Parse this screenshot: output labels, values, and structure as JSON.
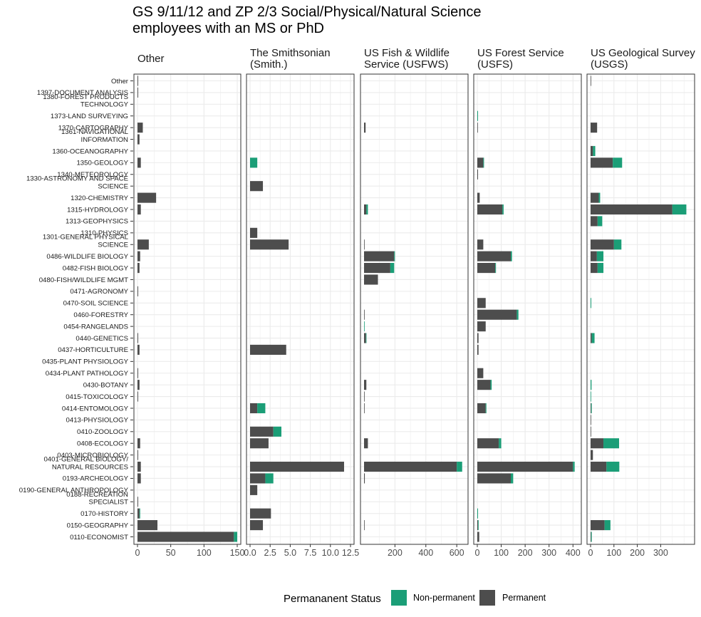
{
  "chart_data": {
    "type": "bar",
    "orientation": "horizontal",
    "stacked": true,
    "title": "GS 9/11/12 and ZP 2/3 Social/Physical/Natural Science employees with an MS or PhD",
    "title_lines": [
      "GS 9/11/12 and ZP 2/3 Social/Physical/Natural Science",
      "employees with an MS or PhD"
    ],
    "categories": [
      "Other",
      "1397-DOCUMENT ANALYSIS",
      "1380-FOREST PRODUCTS TECHNOLOGY",
      "1373-LAND SURVEYING",
      "1370-CARTOGRAPHY",
      "1361-NAVIGATIONAL INFORMATION",
      "1360-OCEANOGRAPHY",
      "1350-GEOLOGY",
      "1340-METEOROLOGY",
      "1330-ASTRONOMY AND SPACE SCIENCE",
      "1320-CHEMISTRY",
      "1315-HYDROLOGY",
      "1313-GEOPHYSICS",
      "1310-PHYSICS",
      "1301-GENERAL PHYSICAL SCIENCE",
      "0486-WILDLIFE BIOLOGY",
      "0482-FISH BIOLOGY",
      "0480-FISH/WILDLIFE MGMT",
      "0471-AGRONOMY",
      "0470-SOIL SCIENCE",
      "0460-FORESTRY",
      "0454-RANGELANDS",
      "0440-GENETICS",
      "0437-HORTICULTURE",
      "0435-PLANT PHYSIOLOGY",
      "0434-PLANT PATHOLOGY",
      "0430-BOTANY",
      "0415-TOXICOLOGY",
      "0414-ENTOMOLOGY",
      "0413-PHYSIOLOGY",
      "0410-ZOOLOGY",
      "0408-ECOLOGY",
      "0403-MICROBIOLOGY",
      "0401-GENERAL BIOLOGY/ NATURAL RESOURCES",
      "0193-ARCHEOLOGY",
      "0190-GENERAL ANTHROPOLOGY",
      "0188-RECREATION SPECIALIST",
      "0170-HISTORY",
      "0150-GEOGRAPHY",
      "0110-ECONOMIST"
    ],
    "category_lines": [
      [
        "Other"
      ],
      [
        "1397-DOCUMENT ANALYSIS"
      ],
      [
        "1380-FOREST PRODUCTS",
        "TECHNOLOGY"
      ],
      [
        "1373-LAND SURVEYING"
      ],
      [
        "1370-CARTOGRAPHY"
      ],
      [
        "1361-NAVIGATIONAL",
        "INFORMATION"
      ],
      [
        "1360-OCEANOGRAPHY"
      ],
      [
        "1350-GEOLOGY"
      ],
      [
        "1340-METEOROLOGY"
      ],
      [
        "1330-ASTRONOMY AND SPACE",
        "SCIENCE"
      ],
      [
        "1320-CHEMISTRY"
      ],
      [
        "1315-HYDROLOGY"
      ],
      [
        "1313-GEOPHYSICS"
      ],
      [
        "1310-PHYSICS"
      ],
      [
        "1301-GENERAL PHYSICAL",
        "SCIENCE"
      ],
      [
        "0486-WILDLIFE BIOLOGY"
      ],
      [
        "0482-FISH BIOLOGY"
      ],
      [
        "0480-FISH/WILDLIFE MGMT"
      ],
      [
        "0471-AGRONOMY"
      ],
      [
        "0470-SOIL SCIENCE"
      ],
      [
        "0460-FORESTRY"
      ],
      [
        "0454-RANGELANDS"
      ],
      [
        "0440-GENETICS"
      ],
      [
        "0437-HORTICULTURE"
      ],
      [
        "0435-PLANT PHYSIOLOGY"
      ],
      [
        "0434-PLANT PATHOLOGY"
      ],
      [
        "0430-BOTANY"
      ],
      [
        "0415-TOXICOLOGY"
      ],
      [
        "0414-ENTOMOLOGY"
      ],
      [
        "0413-PHYSIOLOGY"
      ],
      [
        "0410-ZOOLOGY"
      ],
      [
        "0408-ECOLOGY"
      ],
      [
        "0403-MICROBIOLOGY"
      ],
      [
        "0401-GENERAL BIOLOGY/",
        "NATURAL RESOURCES"
      ],
      [
        "0193-ARCHEOLOGY"
      ],
      [
        "0190-GENERAL ANTHROPOLOGY"
      ],
      [
        "0188-RECREATION",
        "SPECIALIST"
      ],
      [
        "0170-HISTORY"
      ],
      [
        "0150-GEOGRAPHY"
      ],
      [
        "0110-ECONOMIST"
      ]
    ],
    "legend": {
      "title": "Permananent Status",
      "position": "bottom",
      "entries": [
        {
          "name": "Non-permanent",
          "color": "#1b9e77"
        },
        {
          "name": "Permanent",
          "color": "#4d4d4d"
        }
      ]
    },
    "colors": {
      "permanent": "#4d4d4d",
      "non_permanent": "#1b9e77",
      "panel_border": "#333333",
      "grid": "#ebebeb"
    },
    "grid": true,
    "panels": [
      {
        "strip_lines": [
          "Other"
        ],
        "xlim": [
          0,
          150
        ],
        "ticks": [
          0,
          50,
          100,
          150
        ],
        "tick_labels": [
          "0",
          "50",
          "100",
          "150"
        ],
        "permanent": [
          1,
          1,
          0,
          0,
          8,
          3,
          0,
          5,
          0,
          0,
          28,
          5,
          0,
          0,
          17,
          4,
          3,
          0,
          1,
          0,
          0,
          0,
          1,
          3,
          0,
          1,
          3,
          1,
          0,
          0,
          0,
          4,
          1,
          5,
          5,
          0,
          1,
          3,
          30,
          145
        ],
        "non_permanent": [
          0,
          0,
          0,
          0,
          0,
          0,
          0,
          0,
          0,
          0,
          0,
          0,
          0,
          0,
          0,
          0,
          0,
          0,
          0,
          0,
          0,
          0,
          0,
          0,
          0,
          0,
          0,
          0,
          0,
          0,
          0,
          0,
          0,
          0,
          0,
          0,
          0,
          1,
          0,
          5
        ]
      },
      {
        "strip_lines": [
          "The Smithsonian",
          "(Smith.)"
        ],
        "xlim": [
          0,
          12.5
        ],
        "ticks": [
          0,
          2.5,
          5,
          7.5,
          10,
          12.5
        ],
        "tick_labels": [
          "0.0",
          "2.5",
          "5.0",
          "7.5",
          "10.0",
          "12.5"
        ],
        "permanent": [
          0,
          0,
          0,
          0,
          0,
          0,
          0,
          0,
          0,
          1.6,
          0,
          0,
          0,
          0.9,
          4.8,
          0,
          0,
          0,
          0,
          0,
          0,
          0,
          0,
          4.5,
          0,
          0,
          0,
          0,
          0.9,
          0,
          2.9,
          2.3,
          0,
          11.7,
          1.9,
          0.9,
          0,
          2.6,
          1.6,
          0
        ],
        "non_permanent": [
          0,
          0,
          0,
          0,
          0,
          0,
          0,
          0.9,
          0,
          0,
          0,
          0,
          0,
          0,
          0,
          0,
          0,
          0,
          0,
          0,
          0,
          0,
          0,
          0,
          0,
          0,
          0,
          0,
          1.0,
          0,
          1.0,
          0,
          0,
          0,
          1.0,
          0,
          0,
          0,
          0,
          0
        ]
      },
      {
        "strip_lines": [
          "US Fish & Wildlife",
          "Service (USFWS)"
        ],
        "xlim": [
          0,
          650
        ],
        "ticks": [
          200,
          400,
          600
        ],
        "tick_labels": [
          "200",
          "400",
          "600"
        ],
        "permanent": [
          0,
          0,
          0,
          0,
          10,
          0,
          0,
          0,
          0,
          0,
          0,
          15,
          0,
          0,
          2,
          195,
          170,
          90,
          0,
          0,
          2,
          0,
          12,
          0,
          0,
          0,
          15,
          2,
          2,
          0,
          0,
          25,
          0,
          600,
          5,
          0,
          0,
          0,
          2,
          0
        ],
        "non_permanent": [
          0,
          0,
          0,
          0,
          0,
          0,
          0,
          0,
          0,
          0,
          0,
          10,
          0,
          0,
          0,
          5,
          25,
          0,
          0,
          0,
          0,
          2,
          3,
          0,
          0,
          0,
          0,
          0,
          0,
          0,
          0,
          0,
          0,
          35,
          0,
          0,
          0,
          0,
          0,
          0
        ]
      },
      {
        "strip_lines": [
          "US Forest Service",
          "(USFS)"
        ],
        "xlim": [
          0,
          420
        ],
        "ticks": [
          0,
          100,
          200,
          300,
          400
        ],
        "tick_labels": [
          "0",
          "100",
          "200",
          "300",
          "400"
        ],
        "permanent": [
          0,
          0,
          0,
          0,
          2,
          0,
          0,
          25,
          3,
          0,
          10,
          105,
          0,
          0,
          25,
          140,
          75,
          0,
          0,
          35,
          165,
          35,
          5,
          5,
          0,
          25,
          55,
          0,
          35,
          0,
          0,
          90,
          0,
          400,
          140,
          0,
          0,
          0,
          3,
          8
        ],
        "non_permanent": [
          0,
          0,
          0,
          3,
          0,
          0,
          0,
          3,
          0,
          0,
          0,
          5,
          0,
          0,
          0,
          5,
          3,
          0,
          0,
          0,
          7,
          0,
          0,
          0,
          0,
          0,
          5,
          0,
          3,
          0,
          0,
          10,
          0,
          7,
          10,
          0,
          0,
          3,
          2,
          0
        ]
      },
      {
        "strip_lines": [
          "US Geological Survey",
          "(USGS)"
        ],
        "xlim": [
          0,
          430
        ],
        "ticks": [
          0,
          100,
          200,
          300
        ],
        "tick_labels": [
          "0",
          "100",
          "200",
          "300"
        ],
        "permanent": [
          2,
          0,
          0,
          0,
          28,
          0,
          10,
          95,
          0,
          0,
          35,
          350,
          30,
          0,
          100,
          27,
          30,
          0,
          0,
          0,
          0,
          0,
          5,
          0,
          0,
          0,
          0,
          0,
          2,
          2,
          2,
          55,
          10,
          68,
          0,
          0,
          0,
          0,
          60,
          2
        ],
        "non_permanent": [
          0,
          0,
          0,
          0,
          0,
          0,
          10,
          40,
          0,
          0,
          6,
          60,
          20,
          0,
          32,
          28,
          25,
          0,
          0,
          3,
          0,
          0,
          12,
          0,
          0,
          0,
          4,
          2,
          3,
          0,
          0,
          67,
          0,
          55,
          0,
          0,
          0,
          0,
          25,
          3
        ]
      }
    ]
  }
}
